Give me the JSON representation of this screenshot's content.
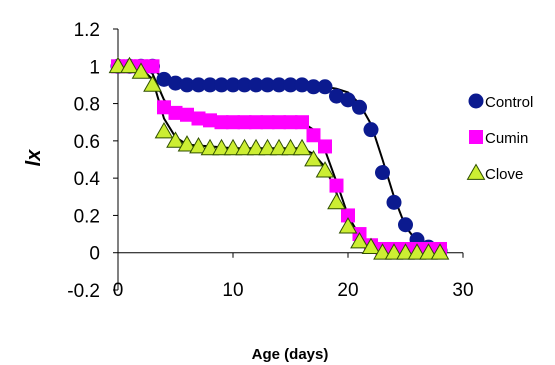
{
  "chart_data": {
    "type": "scatter",
    "xlabel": "Age (days)",
    "ylabel": "lx",
    "xlim": [
      0,
      30
    ],
    "ylim": [
      -0.2,
      1.2
    ],
    "xticks": [
      "0",
      "10",
      "20",
      "30"
    ],
    "yticks": [
      "-0.2",
      "0",
      "0.2",
      "0.4",
      "0.6",
      "0.8",
      "1",
      "1.2"
    ],
    "grid": false,
    "legend_position": "right",
    "series": [
      {
        "name": "Control",
        "marker": "circle",
        "color": "#0b1a8f",
        "x": [
          0,
          1,
          2,
          3,
          4,
          5,
          6,
          7,
          8,
          9,
          10,
          11,
          12,
          13,
          14,
          15,
          16,
          17,
          18,
          19,
          20,
          21,
          22,
          23,
          24,
          25,
          26,
          27,
          28
        ],
        "y": [
          1,
          1,
          1,
          1,
          0.93,
          0.91,
          0.9,
          0.9,
          0.9,
          0.9,
          0.9,
          0.9,
          0.9,
          0.9,
          0.9,
          0.9,
          0.9,
          0.89,
          0.89,
          0.84,
          0.82,
          0.78,
          0.66,
          0.43,
          0.27,
          0.15,
          0.07,
          0.03,
          0.01
        ],
        "fit_x": [
          0,
          2,
          3,
          4,
          5,
          7,
          10,
          15,
          17,
          19,
          20,
          21,
          22,
          23,
          24,
          25,
          26,
          27,
          28
        ],
        "fit_y": [
          1,
          1,
          0.99,
          0.93,
          0.91,
          0.91,
          0.91,
          0.9,
          0.9,
          0.88,
          0.86,
          0.8,
          0.69,
          0.5,
          0.3,
          0.14,
          0.06,
          0.02,
          0.01
        ]
      },
      {
        "name": "Cumin",
        "marker": "square",
        "color": "#ff00ff",
        "x": [
          0,
          1,
          2,
          3,
          4,
          5,
          6,
          7,
          8,
          9,
          10,
          11,
          12,
          13,
          14,
          15,
          16,
          17,
          18,
          19,
          20,
          21,
          22,
          23,
          24,
          25,
          26,
          27,
          28
        ],
        "y": [
          1,
          1,
          1,
          1,
          0.78,
          0.75,
          0.74,
          0.72,
          0.71,
          0.7,
          0.7,
          0.7,
          0.7,
          0.7,
          0.7,
          0.7,
          0.7,
          0.63,
          0.57,
          0.36,
          0.2,
          0.1,
          0.04,
          0.02,
          0.02,
          0.02,
          0.02,
          0.02,
          0.02
        ],
        "fit_x": [
          0,
          2,
          3,
          4,
          5,
          6,
          8,
          10,
          13,
          16,
          17,
          18,
          19,
          20,
          21,
          22,
          23,
          24,
          25,
          26,
          27,
          28
        ],
        "fit_y": [
          1,
          1,
          0.96,
          0.82,
          0.75,
          0.73,
          0.71,
          0.7,
          0.7,
          0.7,
          0.66,
          0.55,
          0.38,
          0.2,
          0.09,
          0.03,
          0.01,
          0.01,
          0.01,
          0.01,
          0.01,
          0.01
        ]
      },
      {
        "name": "Clove",
        "marker": "triangle",
        "color": "#ccee33",
        "x": [
          0,
          1,
          2,
          3,
          4,
          5,
          6,
          7,
          8,
          9,
          10,
          11,
          12,
          13,
          14,
          15,
          16,
          17,
          18,
          19,
          20,
          21,
          22,
          23,
          24,
          25,
          26,
          27,
          28
        ],
        "y": [
          1,
          1,
          0.97,
          0.9,
          0.65,
          0.6,
          0.58,
          0.57,
          0.56,
          0.56,
          0.56,
          0.56,
          0.56,
          0.56,
          0.56,
          0.56,
          0.56,
          0.5,
          0.44,
          0.27,
          0.14,
          0.06,
          0.03,
          0,
          0,
          0,
          0,
          0,
          0
        ],
        "fit_x": [
          0,
          2,
          3,
          4,
          5,
          6,
          8,
          10,
          13,
          16,
          17,
          18,
          19,
          20,
          21,
          22,
          23,
          24,
          25,
          26,
          27,
          28
        ],
        "fit_y": [
          1,
          0.99,
          0.93,
          0.72,
          0.62,
          0.58,
          0.57,
          0.56,
          0.56,
          0.56,
          0.53,
          0.46,
          0.32,
          0.16,
          0.07,
          0.02,
          0.01,
          0.01,
          0.01,
          0.01,
          0.01,
          0.01
        ]
      }
    ]
  }
}
